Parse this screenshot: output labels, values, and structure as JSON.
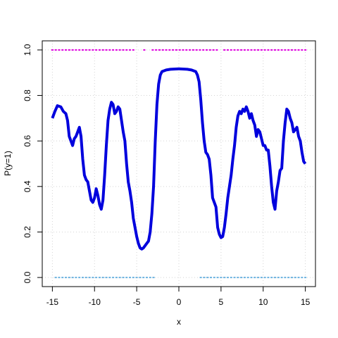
{
  "chart_data": {
    "type": "line",
    "xlabel": "x",
    "ylabel": "P(y=1)",
    "xlim": [
      -16.2,
      16.2
    ],
    "ylim": [
      -0.04,
      1.04
    ],
    "xticks": [
      -15,
      -10,
      -5,
      0,
      5,
      10,
      15
    ],
    "yticks": [
      {
        "value": 0,
        "label": "0.0"
      },
      0.2,
      0.4,
      0.6,
      0.8,
      {
        "value": 1,
        "label": "1.0"
      }
    ],
    "grid": true,
    "series": [
      {
        "type": "line",
        "color": "#0000dd",
        "x": [
          -15,
          -14.7,
          -14.4,
          -14,
          -13.7,
          -13.4,
          -13.2,
          -13,
          -12.8,
          -12.6,
          -12.4,
          -12.2,
          -12,
          -11.8,
          -11.6,
          -11.4,
          -11.2,
          -11,
          -10.8,
          -10.6,
          -10.4,
          -10.2,
          -10,
          -9.8,
          -9.6,
          -9.4,
          -9.2,
          -9,
          -8.8,
          -8.6,
          -8.4,
          -8.2,
          -8,
          -7.8,
          -7.6,
          -7.4,
          -7.2,
          -7,
          -6.8,
          -6.6,
          -6.4,
          -6.2,
          -6,
          -5.8,
          -5.6,
          -5.4,
          -5.2,
          -5,
          -4.8,
          -4.6,
          -4.4,
          -4.2,
          -4,
          -3.8,
          -3.6,
          -3.4,
          -3.2,
          -3,
          -2.8,
          -2.6,
          -2.4,
          -2.2,
          -2,
          -1.5,
          -1,
          0,
          1,
          1.5,
          2,
          2.2,
          2.4,
          2.6,
          2.8,
          3,
          3.2,
          3.4,
          3.6,
          3.8,
          4,
          4.2,
          4.4,
          4.6,
          4.8,
          5,
          5.2,
          5.4,
          5.6,
          5.8,
          6,
          6.2,
          6.4,
          6.6,
          6.8,
          7,
          7.2,
          7.4,
          7.6,
          7.8,
          8,
          8.2,
          8.4,
          8.6,
          8.8,
          9,
          9.2,
          9.4,
          9.6,
          9.8,
          10,
          10.2,
          10.4,
          10.6,
          10.8,
          11,
          11.2,
          11.4,
          11.6,
          11.8,
          12,
          12.2,
          12.4,
          12.6,
          12.8,
          13,
          13.2,
          13.4,
          13.6,
          13.8,
          14,
          14.2,
          14.4,
          14.6,
          14.8,
          15
        ],
        "values": [
          0.7,
          0.73,
          0.755,
          0.75,
          0.73,
          0.72,
          0.69,
          0.62,
          0.6,
          0.58,
          0.61,
          0.62,
          0.64,
          0.66,
          0.62,
          0.52,
          0.45,
          0.43,
          0.42,
          0.38,
          0.34,
          0.33,
          0.35,
          0.39,
          0.36,
          0.32,
          0.3,
          0.34,
          0.45,
          0.58,
          0.69,
          0.74,
          0.77,
          0.76,
          0.72,
          0.73,
          0.75,
          0.74,
          0.69,
          0.64,
          0.6,
          0.5,
          0.42,
          0.38,
          0.33,
          0.26,
          0.22,
          0.18,
          0.15,
          0.13,
          0.125,
          0.13,
          0.14,
          0.15,
          0.16,
          0.2,
          0.28,
          0.4,
          0.6,
          0.76,
          0.85,
          0.89,
          0.905,
          0.912,
          0.915,
          0.917,
          0.915,
          0.912,
          0.905,
          0.89,
          0.86,
          0.78,
          0.68,
          0.6,
          0.55,
          0.54,
          0.52,
          0.45,
          0.35,
          0.33,
          0.31,
          0.22,
          0.19,
          0.175,
          0.18,
          0.22,
          0.28,
          0.35,
          0.4,
          0.45,
          0.52,
          0.58,
          0.66,
          0.71,
          0.73,
          0.72,
          0.74,
          0.73,
          0.75,
          0.73,
          0.7,
          0.72,
          0.69,
          0.67,
          0.62,
          0.65,
          0.64,
          0.61,
          0.58,
          0.58,
          0.56,
          0.56,
          0.49,
          0.4,
          0.33,
          0.3,
          0.38,
          0.42,
          0.47,
          0.48,
          0.6,
          0.68,
          0.74,
          0.73,
          0.7,
          0.68,
          0.64,
          0.65,
          0.66,
          0.62,
          0.6,
          0.55,
          0.51,
          0.5
        ]
      },
      {
        "type": "scatter",
        "color": "#e000e0",
        "x": [
          -15,
          -14.6,
          -14.2,
          -13.8,
          -13.4,
          -13,
          -12.6,
          -12.2,
          -11.8,
          -11.4,
          -11,
          -10.6,
          -10.2,
          -9.8,
          -9.4,
          -9,
          -8.6,
          -8.2,
          -7.8,
          -7.4,
          -7,
          -6.6,
          -6.2,
          -5.8,
          -5.4,
          -4.1,
          -3.1,
          -2.7,
          -2.3,
          -1.9,
          -1.5,
          -1.1,
          -0.7,
          -0.3,
          0.1,
          0.5,
          0.9,
          1.3,
          1.7,
          2.1,
          2.5,
          2.9,
          3.3,
          3.7,
          4.1,
          4.5,
          5.4,
          5.8,
          6.2,
          6.6,
          7,
          7.4,
          7.8,
          8.2,
          8.6,
          9,
          9.4,
          9.8,
          10.2,
          10.6,
          11,
          11.4,
          11.8,
          12.2,
          12.6,
          13,
          13.4,
          13.8,
          14.2,
          14.6,
          15
        ],
        "values": [
          1,
          1,
          1,
          1,
          1,
          1,
          1,
          1,
          1,
          1,
          1,
          1,
          1,
          1,
          1,
          1,
          1,
          1,
          1,
          1,
          1,
          1,
          1,
          1,
          1,
          1,
          1,
          1,
          1,
          1,
          1,
          1,
          1,
          1,
          1,
          1,
          1,
          1,
          1,
          1,
          1,
          1,
          1,
          1,
          1,
          1,
          1,
          1,
          1,
          1,
          1,
          1,
          1,
          1,
          1,
          1,
          1,
          1,
          1,
          1,
          1,
          1,
          1,
          1,
          1,
          1,
          1,
          1,
          1,
          1,
          1
        ]
      },
      {
        "type": "scatter",
        "color": "#6fb4e0",
        "x": [
          -14.6,
          -14.2,
          -13.8,
          -13.4,
          -13,
          -12.6,
          -12.2,
          -11.8,
          -11.4,
          -11,
          -10.6,
          -10.2,
          -9.8,
          -9.4,
          -9,
          -8.6,
          -8.2,
          -7.8,
          -7.4,
          -7,
          -6.6,
          -6.2,
          -5.8,
          -5.4,
          -5,
          -4.6,
          -4.2,
          -3.8,
          -3.4,
          -3,
          2.6,
          3,
          3.4,
          3.8,
          4.2,
          4.6,
          5,
          5.4,
          5.8,
          6.2,
          6.6,
          7,
          7.4,
          7.8,
          8.2,
          8.6,
          9,
          9.4,
          9.8,
          10.2,
          10.6,
          11,
          11.4,
          11.8,
          12.2,
          12.6,
          13,
          13.4,
          13.8,
          14.2,
          14.6,
          15
        ],
        "values": [
          0,
          0,
          0,
          0,
          0,
          0,
          0,
          0,
          0,
          0,
          0,
          0,
          0,
          0,
          0,
          0,
          0,
          0,
          0,
          0,
          0,
          0,
          0,
          0,
          0,
          0,
          0,
          0,
          0,
          0,
          0,
          0,
          0,
          0,
          0,
          0,
          0,
          0,
          0,
          0,
          0,
          0,
          0,
          0,
          0,
          0,
          0,
          0,
          0,
          0,
          0,
          0,
          0,
          0,
          0,
          0,
          0,
          0,
          0,
          0,
          0,
          0
        ]
      }
    ]
  }
}
